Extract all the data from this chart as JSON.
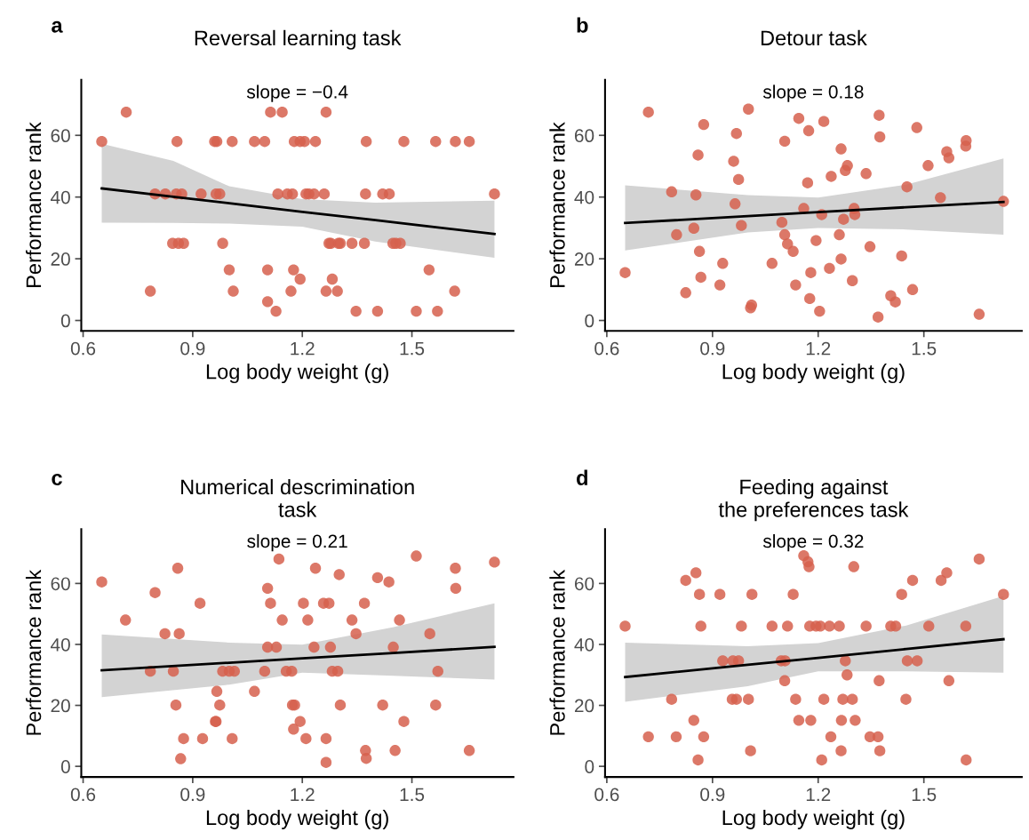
{
  "chart_data": [
    {
      "type": "scatter",
      "title": "Reversal learning task",
      "xlabel": "Log body weight (g)",
      "ylabel": "Performance rank",
      "annotations": [
        "a",
        "slope = −0.4"
      ],
      "xlim": [
        0.595,
        1.778
      ],
      "ylim": [
        -3.4,
        78
      ],
      "xticks": [
        0.6,
        0.9,
        1.2,
        1.5
      ],
      "yticks": [
        0,
        20,
        40,
        60
      ],
      "series": [
        {
          "marker": "circle",
          "color": "#d6604d",
          "x": [
            0.718,
            1.113,
            1.145,
            1.265,
            0.651,
            0.857,
            0.96,
            0.966,
            1.008,
            1.069,
            1.097,
            1.178,
            1.194,
            1.206,
            1.236,
            1.375,
            1.478,
            1.565,
            1.619,
            1.657,
            0.797,
            0.825,
            0.855,
            0.87,
            0.923,
            0.964,
            0.974,
            1.133,
            1.159,
            1.173,
            1.21,
            1.218,
            1.232,
            1.26,
            1.373,
            1.42,
            1.438,
            1.726,
            0.845,
            0.861,
            0.875,
            0.982,
            1.273,
            1.278,
            1.299,
            1.304,
            1.336,
            1.37,
            1.448,
            1.456,
            1.468,
            1.0,
            1.105,
            1.176,
            1.547,
            1.194,
            1.282,
            0.784,
            1.011,
            1.169,
            1.265,
            1.296,
            1.617,
            1.105,
            1.128,
            1.347,
            1.406,
            1.512,
            1.57
          ],
          "values": [
            67.5,
            67.5,
            67.5,
            67.5,
            58,
            58,
            58,
            58,
            58,
            58,
            58,
            58,
            58,
            58,
            58,
            58,
            58,
            58,
            58,
            58,
            41,
            41,
            41,
            41,
            41,
            41,
            41,
            41,
            41,
            41,
            41,
            41,
            41,
            41,
            41,
            41,
            41,
            41,
            25,
            25,
            25,
            25,
            25,
            25,
            25,
            25,
            25,
            25,
            25,
            25,
            25,
            16.4,
            16.4,
            16.4,
            16.4,
            13.4,
            13.4,
            9.5,
            9.5,
            9.5,
            9.5,
            9.5,
            9.5,
            6.1,
            3,
            3,
            3,
            3,
            3
          ]
        },
        {
          "type": "line",
          "color": "#000000",
          "x": [
            0.651,
            0.847,
            1.0,
            1.2,
            1.4,
            1.726
          ],
          "values": [
            42.8,
            40.1,
            38.0,
            35.2,
            32.5,
            28.0
          ],
          "lower": [
            31.7,
            31.6,
            31.4,
            30.4,
            25.6,
            20.3
          ],
          "upper": [
            57.3,
            51.7,
            43.5,
            39.3,
            38.2,
            38.8
          ]
        }
      ]
    },
    {
      "type": "scatter",
      "title": "Detour task",
      "xlabel": "Log body weight (g)",
      "ylabel": "Performance rank",
      "annotations": [
        "b",
        "slope = 0.18"
      ],
      "xlim": [
        0.595,
        1.778
      ],
      "ylim": [
        -3.4,
        78
      ],
      "xticks": [
        0.6,
        0.9,
        1.2,
        1.5
      ],
      "yticks": [
        0,
        20,
        40,
        60
      ],
      "series": [
        {
          "marker": "circle",
          "color": "#d6604d",
          "x": [
            0.718,
            1.002,
            0.875,
            0.968,
            1.145,
            1.216,
            1.173,
            1.105,
            1.373,
            1.375,
            1.48,
            1.62,
            1.619,
            1.565,
            1.571,
            0.859,
            0.96,
            1.265,
            1.283,
            1.277,
            1.237,
            1.336,
            1.512,
            0.974,
            1.17,
            0.784,
            0.853,
            1.452,
            0.964,
            1.547,
            1.726,
            1.159,
            1.302,
            1.304,
            1.21,
            1.272,
            1.097,
            0.982,
            0.847,
            0.798,
            1.105,
            1.26,
            1.194,
            1.113,
            1.129,
            1.347,
            0.863,
            1.437,
            0.929,
            1.069,
            1.265,
            0.652,
            1.179,
            1.232,
            0.867,
            1.297,
            0.921,
            1.136,
            0.824,
            1.468,
            1.406,
            1.419,
            1.176,
            1.011,
            1.008,
            1.204,
            1.37,
            1.657
          ],
          "values": [
            67.5,
            68.5,
            63.5,
            60.6,
            65.5,
            64.5,
            61.5,
            58.1,
            66.5,
            59.5,
            62.5,
            58.3,
            56.5,
            54.7,
            52.7,
            53.6,
            51.6,
            55.6,
            50.2,
            48.6,
            46.7,
            47.6,
            50.2,
            45.7,
            44.6,
            41.7,
            40.7,
            43.3,
            37.8,
            39.8,
            38.6,
            36.3,
            36.3,
            34.3,
            34.3,
            32.8,
            31.8,
            30.8,
            29.9,
            27.8,
            27.8,
            27.8,
            25.9,
            24.8,
            22.4,
            23.9,
            22.4,
            20.9,
            18.5,
            18.5,
            19.9,
            15.5,
            15.5,
            16.9,
            14.0,
            12.9,
            11.5,
            11.5,
            9.0,
            10.0,
            8.0,
            6.0,
            7.1,
            5.0,
            4.1,
            3.0,
            1.1,
            2.0
          ]
        },
        {
          "type": "line",
          "color": "#000000",
          "x": [
            0.652,
            1.0,
            1.2,
            1.45,
            1.726
          ],
          "values": [
            31.6,
            33.8,
            35.1,
            36.7,
            38.4
          ],
          "lower": [
            22.7,
            28.5,
            30.0,
            29.5,
            27.8
          ],
          "upper": [
            43.8,
            40.6,
            39.8,
            44.0,
            52.5
          ]
        }
      ]
    },
    {
      "type": "scatter",
      "title": "Numerical descrimination\ntask",
      "xlabel": "Log body weight (g)",
      "ylabel": "Performance rank",
      "annotations": [
        "c",
        "slope = 0.21"
      ],
      "xlim": [
        0.595,
        1.778
      ],
      "ylim": [
        -3.5,
        77.8
      ],
      "xticks": [
        0.6,
        0.9,
        1.2,
        1.5
      ],
      "yticks": [
        0,
        20,
        40,
        60
      ],
      "series": [
        {
          "marker": "circle",
          "color": "#d6604d",
          "x": [
            0.651,
            0.716,
            0.859,
            0.797,
            0.92,
            0.824,
            0.863,
            0.784,
            0.847,
            0.982,
            1.0,
            1.014,
            0.966,
            1.069,
            0.854,
            0.974,
            0.962,
            0.964,
            0.875,
            0.927,
            1.008,
            0.867,
            1.136,
            1.105,
            1.113,
            1.145,
            1.105,
            1.129,
            1.097,
            1.156,
            1.171,
            1.173,
            1.179,
            1.194,
            1.176,
            1.21,
            1.236,
            1.203,
            1.215,
            1.232,
            1.258,
            1.273,
            1.301,
            1.277,
            1.282,
            1.297,
            1.304,
            1.265,
            1.265,
            1.37,
            1.336,
            1.347,
            1.406,
            1.437,
            1.466,
            1.449,
            1.42,
            1.373,
            1.375,
            1.454,
            1.478,
            1.512,
            1.549,
            1.571,
            1.565,
            1.619,
            1.62,
            1.657,
            1.726
          ],
          "values": [
            60.5,
            48.0,
            65.0,
            57.0,
            53.5,
            43.5,
            43.5,
            31.2,
            31.2,
            31.2,
            31.2,
            31.2,
            24.6,
            24.6,
            20.1,
            20.1,
            14.7,
            14.7,
            9.1,
            9.1,
            9.1,
            2.5,
            68.0,
            58.4,
            53.5,
            48.0,
            39.1,
            39.1,
            31.2,
            31.2,
            31.2,
            20.1,
            20.1,
            14.7,
            12.2,
            9.1,
            65.0,
            53.5,
            48.0,
            39.1,
            53.5,
            53.5,
            62.9,
            39.1,
            31.2,
            31.2,
            20.1,
            9.1,
            1.3,
            53.5,
            48.0,
            43.5,
            61.9,
            60.5,
            48.0,
            39.1,
            20.1,
            5.2,
            2.6,
            5.2,
            14.7,
            69.0,
            43.5,
            31.2,
            20.1,
            65.0,
            58.4,
            5.2,
            67.0
          ]
        },
        {
          "type": "line",
          "color": "#000000",
          "x": [
            0.651,
            1.0,
            1.2,
            1.45,
            1.726
          ],
          "values": [
            31.5,
            34.0,
            35.4,
            37.2,
            39.2
          ],
          "lower": [
            22.7,
            26.8,
            30.7,
            29.7,
            28.5
          ],
          "upper": [
            43.3,
            40.6,
            39.9,
            45.7,
            53.5
          ]
        }
      ]
    },
    {
      "type": "scatter",
      "title": "Feeding against\nthe preferences task",
      "xlabel": "Log body weight (g)",
      "ylabel": "Performance rank",
      "annotations": [
        "d",
        "slope = 0.32"
      ],
      "xlim": [
        0.595,
        1.778
      ],
      "ylim": [
        -3.5,
        77.8
      ],
      "xticks": [
        0.6,
        0.9,
        1.2,
        1.5
      ],
      "yticks": [
        0,
        20,
        40,
        60
      ],
      "series": [
        {
          "marker": "circle",
          "color": "#d6604d",
          "x": [
            0.652,
            0.718,
            0.784,
            0.797,
            0.824,
            0.853,
            0.863,
            0.867,
            0.847,
            0.875,
            0.859,
            0.921,
            0.929,
            0.958,
            0.974,
            0.956,
            0.968,
            1.002,
            0.982,
            1.012,
            1.008,
            1.069,
            1.113,
            1.095,
            1.106,
            1.105,
            1.129,
            1.136,
            1.145,
            1.159,
            1.171,
            1.174,
            1.176,
            1.194,
            1.206,
            1.232,
            1.26,
            1.179,
            1.216,
            1.21,
            1.236,
            1.277,
            1.282,
            1.27,
            1.297,
            1.266,
            1.305,
            1.265,
            1.301,
            1.336,
            1.406,
            1.42,
            1.373,
            1.347,
            1.37,
            1.375,
            1.437,
            1.468,
            1.449,
            1.453,
            1.481,
            1.514,
            1.549,
            1.565,
            1.571,
            1.619,
            1.62,
            1.657,
            1.726
          ],
          "values": [
            46.0,
            9.7,
            22.0,
            9.7,
            61.0,
            63.5,
            56.4,
            46.0,
            15.1,
            9.7,
            2.1,
            56.4,
            34.6,
            34.6,
            34.6,
            22.0,
            22.0,
            22.0,
            46.0,
            56.4,
            5.1,
            46.0,
            46.0,
            34.6,
            34.6,
            28.1,
            56.4,
            22.0,
            15.1,
            69.1,
            67.1,
            65.5,
            46.0,
            46.0,
            46.0,
            46.0,
            46.0,
            15.1,
            22.0,
            2.1,
            9.7,
            34.6,
            30.0,
            22.0,
            22.0,
            15.1,
            15.1,
            5.1,
            65.5,
            46.0,
            46.0,
            46.0,
            28.1,
            9.7,
            9.7,
            5.1,
            56.4,
            61.0,
            22.0,
            34.6,
            34.6,
            46.0,
            61.0,
            63.5,
            28.1,
            46.0,
            2.1,
            68.0,
            56.4
          ]
        },
        {
          "type": "line",
          "color": "#000000",
          "x": [
            0.652,
            1.0,
            1.2,
            1.45,
            1.726
          ],
          "values": [
            29.3,
            33.3,
            35.6,
            38.5,
            41.7
          ],
          "lower": [
            21.2,
            26.3,
            31.2,
            31.2,
            30.7
          ],
          "upper": [
            40.6,
            39.4,
            40.4,
            46.2,
            55.9
          ]
        }
      ]
    }
  ]
}
